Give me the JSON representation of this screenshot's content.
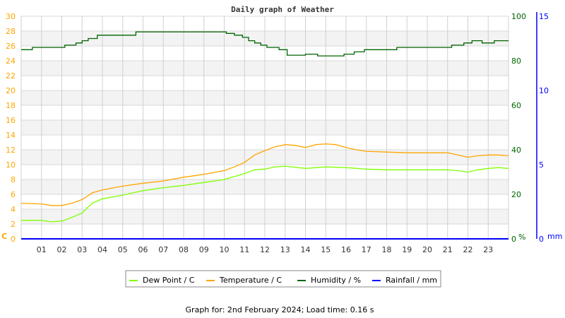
{
  "chart_data": {
    "type": "line",
    "title": "Daily graph of Weather",
    "x_ticks": [
      "01",
      "02",
      "03",
      "04",
      "05",
      "06",
      "07",
      "08",
      "09",
      "10",
      "11",
      "12",
      "13",
      "14",
      "15",
      "16",
      "17",
      "18",
      "19",
      "20",
      "21",
      "22",
      "23"
    ],
    "xlim_hours": [
      0,
      24
    ],
    "y_left": {
      "unit": "C",
      "ylim": [
        0,
        30
      ],
      "ticks": [
        "0",
        "2",
        "4",
        "6",
        "8",
        "10",
        "12",
        "14",
        "16",
        "18",
        "20",
        "22",
        "24",
        "26",
        "28",
        "30"
      ],
      "color": "#ffa500"
    },
    "y_right_humidity": {
      "unit": "%",
      "ylim": [
        0,
        100
      ],
      "ticks": [
        "0",
        "20",
        "40",
        "60",
        "80",
        "100"
      ],
      "color": "#006400"
    },
    "y_right_rain": {
      "unit": "mm",
      "ylim": [
        0,
        15
      ],
      "ticks": [
        "0",
        "5",
        "10",
        "15"
      ],
      "color": "#0000ff"
    },
    "legend_position": "bottom-center",
    "series": [
      {
        "name": "Dew Point / C",
        "color": "#7fff00",
        "axis": "left",
        "x": [
          0,
          1,
          1.5,
          2,
          2.5,
          3,
          3.3,
          3.5,
          4,
          5,
          6,
          7,
          8,
          9,
          10,
          11,
          11.5,
          12,
          12.5,
          13,
          14,
          15,
          16,
          17,
          18,
          19,
          20,
          21,
          21.5,
          22,
          22.5,
          23,
          23.5,
          24
        ],
        "y": [
          2.5,
          2.5,
          2.3,
          2.4,
          2.9,
          3.5,
          4.3,
          4.8,
          5.4,
          5.9,
          6.5,
          6.9,
          7.2,
          7.6,
          8.0,
          8.8,
          9.3,
          9.4,
          9.7,
          9.8,
          9.5,
          9.7,
          9.6,
          9.4,
          9.3,
          9.3,
          9.3,
          9.3,
          9.2,
          9.0,
          9.3,
          9.5,
          9.6,
          9.5
        ]
      },
      {
        "name": "Temperature / C",
        "color": "#ffa500",
        "axis": "left",
        "x": [
          0,
          1,
          1.5,
          2,
          2.5,
          3,
          3.5,
          4,
          5,
          6,
          7,
          8,
          9,
          10,
          10.5,
          11,
          11.5,
          12,
          12.5,
          13,
          13.5,
          14,
          14.5,
          15,
          15.5,
          16,
          16.5,
          17,
          18,
          19,
          20,
          21,
          21.5,
          22,
          22.5,
          23,
          23.5,
          24
        ],
        "y": [
          4.8,
          4.7,
          4.5,
          4.5,
          4.8,
          5.3,
          6.2,
          6.6,
          7.1,
          7.5,
          7.8,
          8.3,
          8.7,
          9.2,
          9.7,
          10.3,
          11.3,
          11.9,
          12.4,
          12.7,
          12.6,
          12.3,
          12.7,
          12.8,
          12.7,
          12.3,
          12.0,
          11.8,
          11.7,
          11.6,
          11.6,
          11.6,
          11.3,
          11.0,
          11.2,
          11.3,
          11.3,
          11.2
        ]
      },
      {
        "name": "Humidity / %",
        "color": "#006400",
        "axis": "humidity",
        "step": true,
        "x": [
          0,
          0.55,
          2.15,
          2.7,
          3.0,
          3.3,
          3.75,
          5.65,
          10.1,
          10.5,
          10.9,
          11.2,
          11.5,
          11.8,
          12.1,
          12.7,
          13.1,
          14.0,
          14.6,
          15.9,
          16.4,
          16.9,
          18.5,
          21.2,
          21.8,
          22.2,
          22.7,
          23.3,
          24
        ],
        "y": [
          85,
          86,
          87,
          88,
          89,
          90,
          91.5,
          93,
          92.3,
          91.5,
          90.5,
          89,
          88,
          87,
          86,
          85,
          82.5,
          83,
          82.2,
          83,
          84,
          85,
          86,
          87,
          88,
          89,
          88,
          89,
          89
        ]
      },
      {
        "name": "Rainfall / mm",
        "color": "#0000ff",
        "axis": "rain",
        "x": [
          0,
          24
        ],
        "y": [
          0,
          0
        ]
      }
    ]
  },
  "footer": {
    "text": "Graph for: 2nd February 2024; Load time: 0.16 s"
  }
}
